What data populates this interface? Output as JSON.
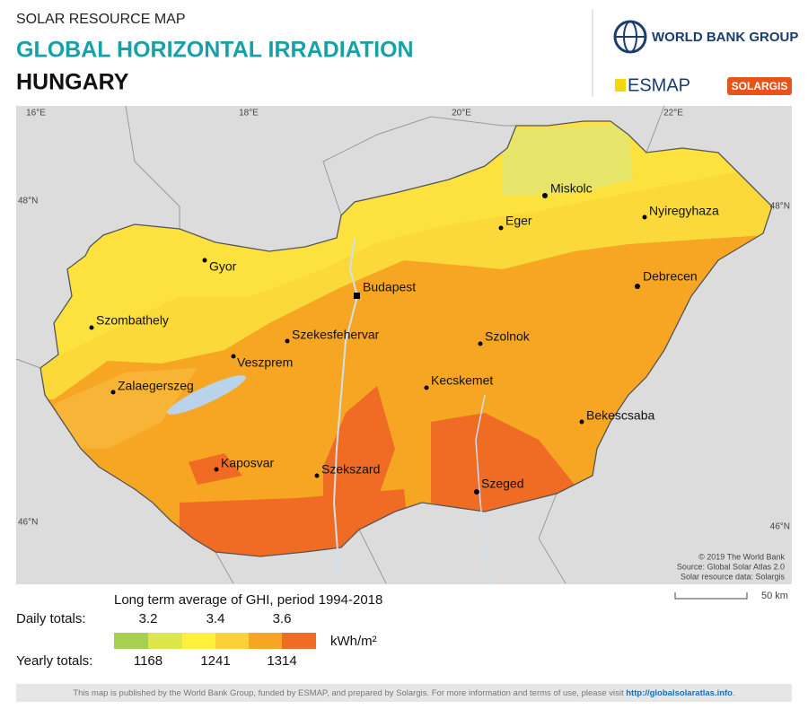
{
  "header": {
    "supertitle": "SOLAR RESOURCE MAP",
    "title": "GLOBAL HORIZONTAL IRRADIATION",
    "country": "HUNGARY"
  },
  "logos": {
    "world_bank": "WORLD BANK GROUP",
    "esmap": "ESMAP",
    "solargis": "SOLARGIS"
  },
  "map": {
    "graticule": {
      "top": [
        "16°E",
        "18°E",
        "20°E",
        "22°E"
      ],
      "left": [
        "48°N",
        "46°N"
      ],
      "right": [
        "48°N",
        "46°N"
      ]
    },
    "cities": [
      "Miskolc",
      "Eger",
      "Nyiregyhaza",
      "Gyor",
      "Budapest",
      "Debrecen",
      "Szombathely",
      "Szekesfehervar",
      "Szolnok",
      "Veszprem",
      "Zalaegerszeg",
      "Kecskemet",
      "Bekescsaba",
      "Kaposvar",
      "Szekszard",
      "Szeged"
    ],
    "credits": [
      "© 2019 The World Bank",
      "Source: Global Solar Atlas 2.0",
      "Solar resource data: Solargis"
    ],
    "scale": "50 km"
  },
  "legend": {
    "title": "Long term average of GHI, period 1994-2018",
    "daily_label": "Daily totals:",
    "daily": [
      3.2,
      3.4,
      3.6
    ],
    "unit": "kWh/m²",
    "yearly_label": "Yearly totals:",
    "yearly": [
      1168,
      1241,
      1314
    ]
  },
  "footer": {
    "text": "This map is published by the World Bank Group, funded by ESMAP, and prepared by Solargis. For more information and terms of use, please visit",
    "link": "http://globalsolaratlas.info",
    "end": "."
  }
}
